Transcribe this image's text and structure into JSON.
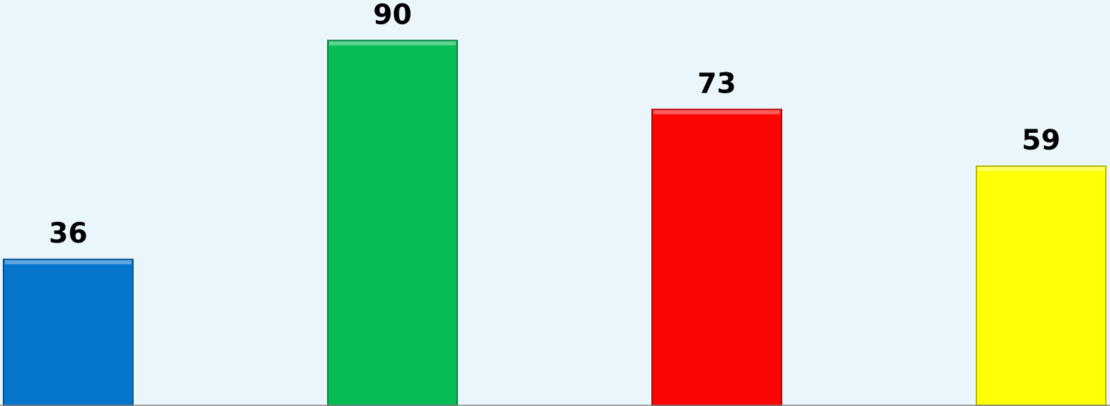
{
  "chart_data": {
    "type": "bar",
    "values": [
      36,
      90,
      73,
      59
    ],
    "colors": [
      "#0676cc",
      "#06bd55",
      "#fe0505",
      "#ffff06"
    ],
    "ylim": [
      0,
      100
    ]
  }
}
